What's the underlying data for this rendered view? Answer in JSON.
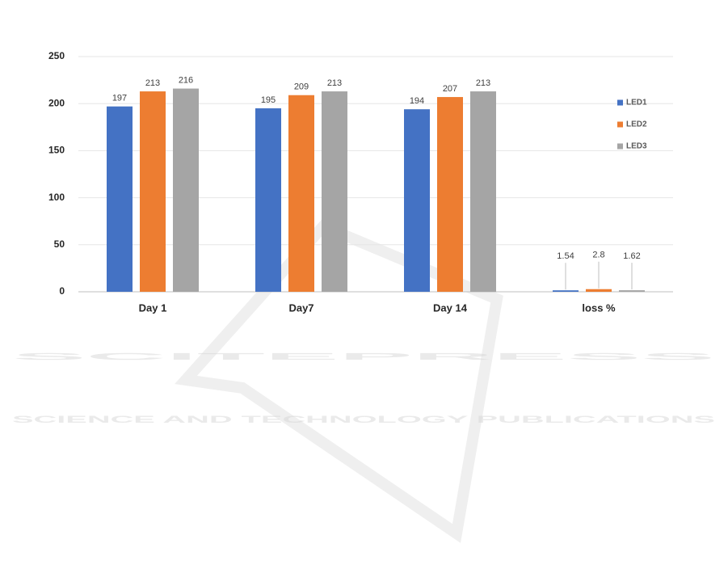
{
  "chart_data": {
    "type": "bar",
    "categories": [
      "Day 1",
      "Day7",
      "Day 14",
      "loss %"
    ],
    "series": [
      {
        "name": "LED1",
        "color": "#4472c4",
        "values": [
          197,
          195,
          194,
          1.54
        ]
      },
      {
        "name": "LED2",
        "color": "#ed7d31",
        "values": [
          213,
          209,
          207,
          2.8
        ]
      },
      {
        "name": "LED3",
        "color": "#a5a5a5",
        "values": [
          216,
          213,
          213,
          1.62
        ]
      }
    ],
    "ylim": [
      0,
      250
    ],
    "yticks": [
      0,
      50,
      100,
      150,
      200,
      250
    ],
    "grid": true,
    "legend": "right"
  },
  "watermark": {
    "title": "SCITEPRESS",
    "subtitle": "SCIENCE AND TECHNOLOGY PUBLICATIONS"
  }
}
